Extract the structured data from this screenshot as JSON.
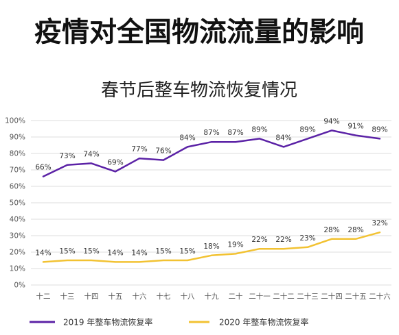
{
  "page": {
    "heading": "疫情对全国物流流量的影响"
  },
  "chart_data": {
    "type": "line",
    "title": "春节后整车物流恢复情况",
    "xlabel": "",
    "ylabel": "",
    "categories": [
      "十二",
      "十三",
      "十四",
      "十五",
      "十六",
      "十七",
      "十八",
      "十九",
      "二十",
      "二十一",
      "二十二",
      "二十三",
      "二十四",
      "二十五",
      "二十六"
    ],
    "ylim": [
      0,
      100
    ],
    "y_ticks": [
      0,
      10,
      20,
      30,
      40,
      50,
      60,
      70,
      80,
      90,
      100
    ],
    "y_tick_labels": [
      "0%",
      "10%",
      "20%",
      "30%",
      "40%",
      "50%",
      "60%",
      "70%",
      "80%",
      "90%",
      "100%"
    ],
    "grid": true,
    "legend_position": "bottom",
    "data_label_suffix": "%",
    "series": [
      {
        "name": "2019 年整车物流恢复率",
        "color": "#5b22a6",
        "values": [
          66,
          73,
          74,
          69,
          77,
          76,
          84,
          87,
          87,
          89,
          84,
          89,
          94,
          91,
          89
        ]
      },
      {
        "name": "2020 年整车物流恢复率",
        "color": "#f2c232",
        "values": [
          14,
          15,
          15,
          14,
          14,
          15,
          15,
          18,
          19,
          22,
          22,
          23,
          28,
          28,
          32
        ]
      }
    ]
  }
}
